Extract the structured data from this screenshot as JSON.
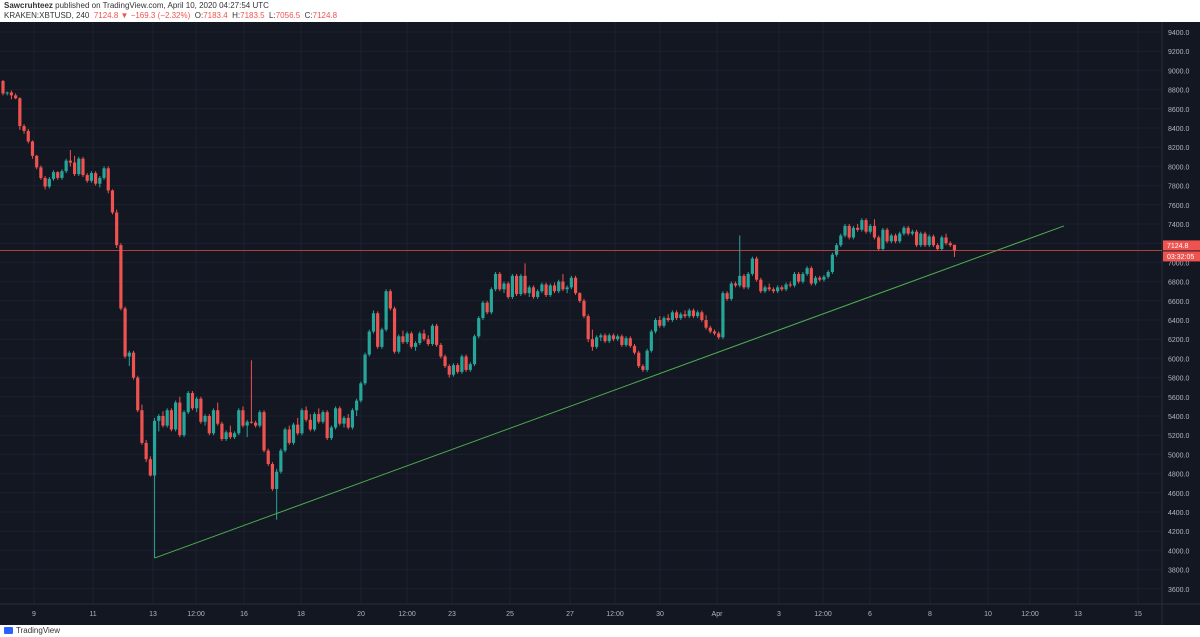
{
  "header": {
    "author": "Sawcruhteez",
    "published": "published on TradingView.com, April 10, 2020 04:27:54 UTC",
    "symbol": "KRAKEN:XBTUSD, 240",
    "last": "7124.8",
    "change": "−169.3 (−2.32%)",
    "o_label": "O:",
    "o": "7183.4",
    "h_label": "H:",
    "h": "7183.5",
    "l_label": "L:",
    "l": "7056.5",
    "c_label": "C:",
    "c": "7124.8"
  },
  "footer": {
    "brand": "TradingView"
  },
  "colors": {
    "bg": "#131722",
    "up": "#26a69a",
    "down": "#ef5350",
    "trend": "#4caf50",
    "price_line": "#ef5350",
    "axis_text": "#b2b5be"
  },
  "chart_data": {
    "type": "candlestick",
    "symbol": "KRAKEN:XBTUSD",
    "interval": "240",
    "ylim": [
      3500,
      9500
    ],
    "y_ticks": [
      "9400.0",
      "9200.0",
      "9000.0",
      "8800.0",
      "8600.0",
      "8400.0",
      "8200.0",
      "8000.0",
      "7800.0",
      "7600.0",
      "7400.0",
      "7200.0",
      "7000.0",
      "6800.0",
      "6600.0",
      "6400.0",
      "6200.0",
      "6000.0",
      "5800.0",
      "5600.0",
      "5400.0",
      "5200.0",
      "5000.0",
      "4800.0",
      "4600.0",
      "4400.0",
      "4200.0",
      "4000.0",
      "3800.0",
      "3600.0"
    ],
    "x_ticks": [
      "9",
      "11",
      "13",
      "12:00",
      "16",
      "18",
      "20",
      "12:00",
      "23",
      "25",
      "27",
      "12:00",
      "30",
      "Apr",
      "3",
      "12:00",
      "6",
      "8",
      "10",
      "12:00",
      "13",
      "15"
    ],
    "current_price": "7124.8",
    "countdown": "03:32:05",
    "trendline": {
      "from": {
        "index": 36,
        "price": 3920
      },
      "to": {
        "index": 252,
        "price": 7380
      }
    },
    "candles": [
      [
        8890,
        8900,
        8740,
        8760
      ],
      [
        8760,
        8780,
        8740,
        8770
      ],
      [
        8770,
        8790,
        8700,
        8740
      ],
      [
        8740,
        8760,
        8700,
        8710
      ],
      [
        8710,
        8720,
        8380,
        8420
      ],
      [
        8420,
        8440,
        8340,
        8370
      ],
      [
        8370,
        8390,
        8240,
        8260
      ],
      [
        8260,
        8270,
        8080,
        8110
      ],
      [
        8110,
        8120,
        7970,
        7990
      ],
      [
        7990,
        8010,
        7860,
        7880
      ],
      [
        7880,
        7900,
        7760,
        7790
      ],
      [
        7790,
        7890,
        7770,
        7870
      ],
      [
        7870,
        7960,
        7850,
        7940
      ],
      [
        7940,
        7950,
        7860,
        7880
      ],
      [
        7880,
        7970,
        7860,
        7950
      ],
      [
        7950,
        8080,
        7930,
        8060
      ],
      [
        8060,
        8170,
        8000,
        8040
      ],
      [
        8040,
        8110,
        7900,
        7920
      ],
      [
        7920,
        8100,
        7900,
        8080
      ],
      [
        8080,
        8100,
        7890,
        7910
      ],
      [
        7910,
        7930,
        7830,
        7850
      ],
      [
        7850,
        7950,
        7830,
        7930
      ],
      [
        7930,
        7950,
        7800,
        7820
      ],
      [
        7820,
        7900,
        7780,
        7880
      ],
      [
        7880,
        8000,
        7860,
        7980
      ],
      [
        7980,
        8000,
        7720,
        7750
      ],
      [
        7750,
        7760,
        7500,
        7520
      ],
      [
        7520,
        7550,
        7150,
        7180
      ],
      [
        7180,
        7200,
        6500,
        6520
      ],
      [
        6520,
        6540,
        6000,
        6020
      ],
      [
        6020,
        6080,
        5920,
        6060
      ],
      [
        6060,
        6080,
        5780,
        5800
      ],
      [
        5800,
        5820,
        5440,
        5460
      ],
      [
        5460,
        5520,
        5100,
        5120
      ],
      [
        5120,
        5150,
        4920,
        4950
      ],
      [
        4950,
        4980,
        4770,
        4780
      ],
      [
        4780,
        5380,
        3920,
        5350
      ],
      [
        5350,
        5420,
        5240,
        5400
      ],
      [
        5400,
        5450,
        5280,
        5300
      ],
      [
        5300,
        5480,
        5280,
        5460
      ],
      [
        5460,
        5480,
        5240,
        5260
      ],
      [
        5260,
        5560,
        5240,
        5540
      ],
      [
        5540,
        5600,
        5180,
        5200
      ],
      [
        5200,
        5460,
        5180,
        5440
      ],
      [
        5440,
        5660,
        5420,
        5640
      ],
      [
        5640,
        5660,
        5460,
        5480
      ],
      [
        5480,
        5600,
        5440,
        5580
      ],
      [
        5580,
        5600,
        5320,
        5340
      ],
      [
        5340,
        5420,
        5300,
        5400
      ],
      [
        5400,
        5420,
        5200,
        5220
      ],
      [
        5220,
        5480,
        5200,
        5460
      ],
      [
        5460,
        5540,
        5300,
        5320
      ],
      [
        5320,
        5340,
        5140,
        5160
      ],
      [
        5160,
        5250,
        5140,
        5230
      ],
      [
        5230,
        5300,
        5160,
        5180
      ],
      [
        5180,
        5240,
        5160,
        5220
      ],
      [
        5220,
        5480,
        5200,
        5460
      ],
      [
        5460,
        5500,
        5280,
        5300
      ],
      [
        5300,
        5360,
        5180,
        5340
      ],
      [
        5340,
        5980,
        5320,
        5330
      ],
      [
        5330,
        5350,
        5280,
        5300
      ],
      [
        5300,
        5460,
        5280,
        5440
      ],
      [
        5440,
        5460,
        5020,
        5040
      ],
      [
        5040,
        5060,
        4880,
        4900
      ],
      [
        4900,
        4920,
        4620,
        4640
      ],
      [
        4640,
        4850,
        4320,
        4820
      ],
      [
        4820,
        5060,
        4800,
        5040
      ],
      [
        5040,
        5280,
        5020,
        5260
      ],
      [
        5260,
        5300,
        5100,
        5120
      ],
      [
        5120,
        5330,
        5100,
        5310
      ],
      [
        5310,
        5380,
        5200,
        5220
      ],
      [
        5220,
        5480,
        5200,
        5460
      ],
      [
        5460,
        5500,
        5340,
        5360
      ],
      [
        5360,
        5420,
        5240,
        5260
      ],
      [
        5260,
        5440,
        5240,
        5420
      ],
      [
        5420,
        5480,
        5320,
        5340
      ],
      [
        5340,
        5460,
        5320,
        5440
      ],
      [
        5440,
        5460,
        5150,
        5170
      ],
      [
        5170,
        5300,
        5150,
        5280
      ],
      [
        5280,
        5500,
        5260,
        5480
      ],
      [
        5480,
        5500,
        5300,
        5320
      ],
      [
        5320,
        5400,
        5280,
        5380
      ],
      [
        5380,
        5420,
        5260,
        5280
      ],
      [
        5280,
        5480,
        5260,
        5460
      ],
      [
        5460,
        5580,
        5400,
        5560
      ],
      [
        5560,
        5760,
        5540,
        5740
      ],
      [
        5740,
        6060,
        5720,
        6040
      ],
      [
        6040,
        6300,
        6020,
        6280
      ],
      [
        6280,
        6500,
        6260,
        6470
      ],
      [
        6470,
        6490,
        6100,
        6120
      ],
      [
        6120,
        6320,
        6100,
        6300
      ],
      [
        6300,
        6720,
        6280,
        6700
      ],
      [
        6700,
        6720,
        6500,
        6520
      ],
      [
        6520,
        6540,
        6050,
        6070
      ],
      [
        6070,
        6250,
        6050,
        6230
      ],
      [
        6230,
        6290,
        6150,
        6170
      ],
      [
        6170,
        6280,
        6150,
        6260
      ],
      [
        6260,
        6280,
        6100,
        6120
      ],
      [
        6120,
        6180,
        6080,
        6160
      ],
      [
        6160,
        6280,
        6140,
        6260
      ],
      [
        6260,
        6300,
        6180,
        6200
      ],
      [
        6200,
        6240,
        6130,
        6150
      ],
      [
        6150,
        6360,
        6130,
        6340
      ],
      [
        6340,
        6360,
        6120,
        6140
      ],
      [
        6140,
        6160,
        6000,
        6020
      ],
      [
        6020,
        6040,
        5900,
        5920
      ],
      [
        5920,
        5940,
        5800,
        5830
      ],
      [
        5830,
        5950,
        5810,
        5930
      ],
      [
        5930,
        5950,
        5840,
        5860
      ],
      [
        5860,
        6040,
        5840,
        6020
      ],
      [
        6020,
        6040,
        5860,
        5880
      ],
      [
        5880,
        5960,
        5860,
        5940
      ],
      [
        5940,
        6250,
        5920,
        6230
      ],
      [
        6230,
        6440,
        6210,
        6420
      ],
      [
        6420,
        6600,
        6400,
        6580
      ],
      [
        6580,
        6600,
        6460,
        6480
      ],
      [
        6480,
        6740,
        6460,
        6720
      ],
      [
        6720,
        6900,
        6700,
        6880
      ],
      [
        6880,
        6900,
        6700,
        6720
      ],
      [
        6720,
        6800,
        6680,
        6780
      ],
      [
        6780,
        6800,
        6620,
        6640
      ],
      [
        6640,
        6880,
        6620,
        6860
      ],
      [
        6860,
        6880,
        6650,
        6670
      ],
      [
        6670,
        6880,
        6650,
        6860
      ],
      [
        6860,
        6990,
        6660,
        6680
      ],
      [
        6680,
        6760,
        6640,
        6740
      ],
      [
        6740,
        6760,
        6620,
        6640
      ],
      [
        6640,
        6720,
        6620,
        6700
      ],
      [
        6700,
        6790,
        6680,
        6770
      ],
      [
        6770,
        6790,
        6640,
        6660
      ],
      [
        6660,
        6780,
        6640,
        6760
      ],
      [
        6760,
        6790,
        6680,
        6700
      ],
      [
        6700,
        6820,
        6680,
        6800
      ],
      [
        6800,
        6880,
        6700,
        6720
      ],
      [
        6720,
        6760,
        6680,
        6740
      ],
      [
        6740,
        6860,
        6720,
        6840
      ],
      [
        6840,
        6860,
        6660,
        6680
      ],
      [
        6680,
        6690,
        6580,
        6600
      ],
      [
        6600,
        6620,
        6420,
        6440
      ],
      [
        6440,
        6460,
        6170,
        6200
      ],
      [
        6200,
        6300,
        6080,
        6120
      ],
      [
        6120,
        6240,
        6100,
        6220
      ],
      [
        6220,
        6260,
        6180,
        6240
      ],
      [
        6240,
        6260,
        6160,
        6180
      ],
      [
        6180,
        6260,
        6160,
        6240
      ],
      [
        6240,
        6260,
        6180,
        6200
      ],
      [
        6200,
        6250,
        6180,
        6230
      ],
      [
        6230,
        6250,
        6120,
        6140
      ],
      [
        6140,
        6230,
        6120,
        6210
      ],
      [
        6210,
        6230,
        6110,
        6130
      ],
      [
        6130,
        6150,
        6040,
        6060
      ],
      [
        6060,
        6080,
        5900,
        5920
      ],
      [
        5920,
        5940,
        5860,
        5880
      ],
      [
        5880,
        6100,
        5860,
        6080
      ],
      [
        6080,
        6300,
        6060,
        6280
      ],
      [
        6280,
        6420,
        6260,
        6400
      ],
      [
        6400,
        6440,
        6320,
        6340
      ],
      [
        6340,
        6440,
        6320,
        6420
      ],
      [
        6420,
        6460,
        6380,
        6400
      ],
      [
        6400,
        6500,
        6380,
        6480
      ],
      [
        6480,
        6500,
        6400,
        6420
      ],
      [
        6420,
        6480,
        6400,
        6460
      ],
      [
        6460,
        6500,
        6420,
        6440
      ],
      [
        6440,
        6520,
        6420,
        6500
      ],
      [
        6500,
        6520,
        6420,
        6440
      ],
      [
        6440,
        6500,
        6420,
        6480
      ],
      [
        6480,
        6500,
        6380,
        6400
      ],
      [
        6400,
        6450,
        6300,
        6320
      ],
      [
        6320,
        6340,
        6260,
        6280
      ],
      [
        6280,
        6300,
        6240,
        6260
      ],
      [
        6260,
        6280,
        6200,
        6220
      ],
      [
        6220,
        6700,
        6200,
        6680
      ],
      [
        6680,
        6700,
        6600,
        6620
      ],
      [
        6620,
        6800,
        6600,
        6780
      ],
      [
        6780,
        6800,
        6740,
        6760
      ],
      [
        6760,
        7280,
        6740,
        6860
      ],
      [
        6860,
        6880,
        6720,
        6740
      ],
      [
        6740,
        6900,
        6720,
        6880
      ],
      [
        6880,
        7060,
        6860,
        7040
      ],
      [
        7040,
        7060,
        6800,
        6820
      ],
      [
        6820,
        6840,
        6680,
        6700
      ],
      [
        6700,
        6760,
        6680,
        6740
      ],
      [
        6740,
        6780,
        6700,
        6720
      ],
      [
        6720,
        6740,
        6680,
        6700
      ],
      [
        6700,
        6760,
        6680,
        6740
      ],
      [
        6740,
        6760,
        6700,
        6720
      ],
      [
        6720,
        6790,
        6700,
        6770
      ],
      [
        6770,
        6800,
        6740,
        6760
      ],
      [
        6760,
        6900,
        6740,
        6880
      ],
      [
        6880,
        6900,
        6780,
        6800
      ],
      [
        6800,
        6900,
        6780,
        6880
      ],
      [
        6880,
        6960,
        6860,
        6940
      ],
      [
        6940,
        6960,
        6760,
        6780
      ],
      [
        6780,
        6860,
        6760,
        6840
      ],
      [
        6840,
        6860,
        6800,
        6820
      ],
      [
        6820,
        6870,
        6800,
        6850
      ],
      [
        6850,
        6920,
        6830,
        6900
      ],
      [
        6900,
        7100,
        6880,
        7080
      ],
      [
        7080,
        7200,
        7060,
        7180
      ],
      [
        7180,
        7300,
        7160,
        7280
      ],
      [
        7280,
        7400,
        7260,
        7380
      ],
      [
        7380,
        7400,
        7240,
        7260
      ],
      [
        7260,
        7380,
        7240,
        7360
      ],
      [
        7360,
        7400,
        7320,
        7340
      ],
      [
        7340,
        7460,
        7320,
        7440
      ],
      [
        7440,
        7460,
        7300,
        7320
      ],
      [
        7320,
        7400,
        7300,
        7380
      ],
      [
        7380,
        7450,
        7240,
        7260
      ],
      [
        7260,
        7280,
        7120,
        7140
      ],
      [
        7140,
        7360,
        7120,
        7340
      ],
      [
        7340,
        7360,
        7200,
        7220
      ],
      [
        7220,
        7300,
        7200,
        7280
      ],
      [
        7280,
        7300,
        7200,
        7220
      ],
      [
        7220,
        7320,
        7200,
        7300
      ],
      [
        7300,
        7380,
        7280,
        7360
      ],
      [
        7360,
        7380,
        7280,
        7300
      ],
      [
        7300,
        7340,
        7280,
        7320
      ],
      [
        7320,
        7340,
        7160,
        7180
      ],
      [
        7180,
        7320,
        7160,
        7300
      ],
      [
        7300,
        7320,
        7160,
        7180
      ],
      [
        7180,
        7290,
        7160,
        7270
      ],
      [
        7270,
        7290,
        7160,
        7180
      ],
      [
        7180,
        7200,
        7120,
        7140
      ],
      [
        7140,
        7280,
        7120,
        7260
      ],
      [
        7260,
        7300,
        7180,
        7200
      ],
      [
        7200,
        7220,
        7160,
        7180
      ],
      [
        7183.4,
        7183.5,
        7056.5,
        7124.8
      ]
    ]
  }
}
